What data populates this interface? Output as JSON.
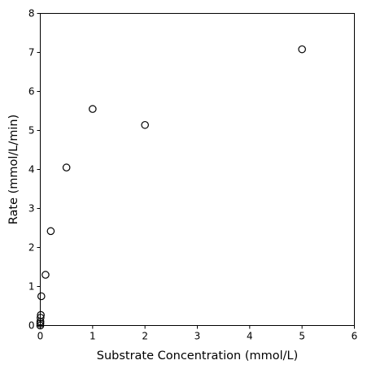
{
  "chart_data": {
    "type": "scatter",
    "xlabel": "Substrate Concentration (mmol/L)",
    "ylabel": "Rate (mmol/L/min)",
    "xlim": [
      0,
      6
    ],
    "ylim": [
      0,
      8
    ],
    "xticks": [
      "0",
      "1",
      "2",
      "3",
      "4",
      "5",
      "6"
    ],
    "yticks": [
      "0",
      "1",
      "2",
      "3",
      "4",
      "5",
      "6",
      "7",
      "8"
    ],
    "grid": false,
    "marker": "open-circle",
    "marker_color": "#000000",
    "points": [
      {
        "x": 0.0,
        "y": 0.0
      },
      {
        "x": 0.001,
        "y": 0.05
      },
      {
        "x": 0.002,
        "y": 0.1
      },
      {
        "x": 0.005,
        "y": 0.2
      },
      {
        "x": 0.01,
        "y": 0.27
      },
      {
        "x": 0.02,
        "y": 0.75
      },
      {
        "x": 0.1,
        "y": 1.3
      },
      {
        "x": 0.2,
        "y": 2.42
      },
      {
        "x": 0.5,
        "y": 4.05
      },
      {
        "x": 1.0,
        "y": 5.55
      },
      {
        "x": 2.0,
        "y": 5.14
      },
      {
        "x": 5.0,
        "y": 7.08
      }
    ]
  }
}
